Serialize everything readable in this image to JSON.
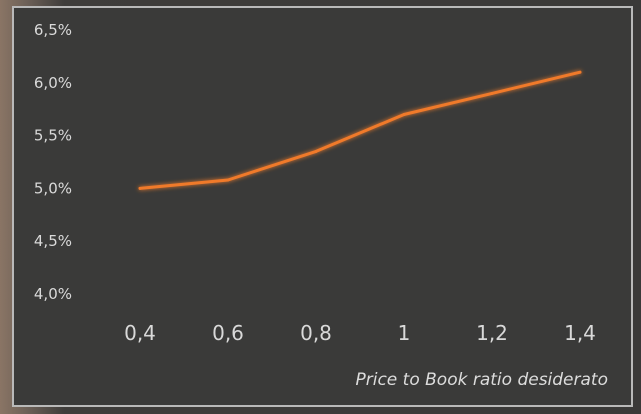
{
  "chart_data": {
    "type": "line",
    "title": "",
    "xlabel": "Price to Book ratio desiderato",
    "ylabel": "",
    "x": [
      0.4,
      0.6,
      0.8,
      1,
      1.2,
      1.4
    ],
    "x_tick_labels": [
      "0,4",
      "0,6",
      "0,8",
      "1",
      "1,2",
      "1,4"
    ],
    "y_tick_values": [
      0.04,
      0.045,
      0.05,
      0.055,
      0.06,
      0.065
    ],
    "y_tick_labels": [
      "4,0%",
      "4,5%",
      "5,0%",
      "5,5%",
      "6,0%",
      "6,5%"
    ],
    "ylim": [
      0.04,
      0.065
    ],
    "grid": false,
    "series": [
      {
        "values": [
          0.05,
          0.0508,
          0.0535,
          0.057,
          0.059,
          0.061
        ],
        "color": "#f07a2a"
      }
    ]
  }
}
